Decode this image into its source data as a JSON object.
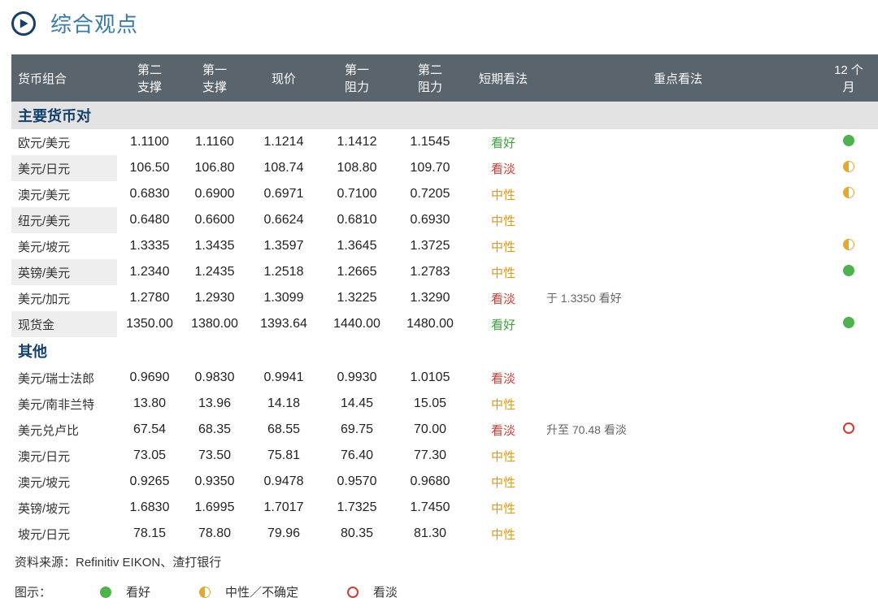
{
  "title": "综合观点",
  "header": {
    "pair": "货币组合",
    "s2": "第二\n支撑",
    "s1": "第一\n支撑",
    "price": "现价",
    "r1": "第一\n阻力",
    "r2": "第二\n阻力",
    "short": "短期看法",
    "key": "重点看法",
    "m12": "12 个\n月"
  },
  "sections": [
    {
      "label": "主要货币对"
    },
    {
      "label": "其他"
    }
  ],
  "views": {
    "bull": "看好",
    "bear": "看淡",
    "neut": "中性"
  },
  "colors": {
    "header_bg": "#5a646c",
    "section_bg": "#e3e3e3",
    "section_text": "#14406e",
    "title_text": "#3a7aa8",
    "bull": "#4db34d",
    "bear": "#d33a32",
    "neut": "#e3a92c"
  },
  "rows_major": [
    {
      "pair": "欧元/美元",
      "s2": "1.1100",
      "s1": "1.1160",
      "price": "1.1214",
      "r1": "1.1412",
      "r2": "1.1545",
      "view": "bull",
      "note": "",
      "m12": "bull"
    },
    {
      "pair": "美元/日元",
      "s2": "106.50",
      "s1": "106.80",
      "price": "108.74",
      "r1": "108.80",
      "r2": "109.70",
      "view": "bear",
      "note": "",
      "m12": "neut"
    },
    {
      "pair": "澳元/美元",
      "s2": "0.6830",
      "s1": "0.6900",
      "price": "0.6971",
      "r1": "0.7100",
      "r2": "0.7205",
      "view": "neut",
      "note": "",
      "m12": "neut"
    },
    {
      "pair": "纽元/美元",
      "s2": "0.6480",
      "s1": "0.6600",
      "price": "0.6624",
      "r1": "0.6810",
      "r2": "0.6930",
      "view": "neut",
      "note": "",
      "m12": ""
    },
    {
      "pair": "美元/坡元",
      "s2": "1.3335",
      "s1": "1.3435",
      "price": "1.3597",
      "r1": "1.3645",
      "r2": "1.3725",
      "view": "neut",
      "note": "",
      "m12": "neut"
    },
    {
      "pair": "英镑/美元",
      "s2": "1.2340",
      "s1": "1.2435",
      "price": "1.2518",
      "r1": "1.2665",
      "r2": "1.2783",
      "view": "neut",
      "note": "",
      "m12": "bull"
    },
    {
      "pair": "美元/加元",
      "s2": "1.2780",
      "s1": "1.2930",
      "price": "1.3099",
      "r1": "1.3225",
      "r2": "1.3290",
      "view": "bear",
      "note": "于 1.3350 看好",
      "m12": ""
    },
    {
      "pair": "现货金",
      "s2": "1350.00",
      "s1": "1380.00",
      "price": "1393.64",
      "r1": "1440.00",
      "r2": "1480.00",
      "view": "bull",
      "note": "",
      "m12": "bull"
    }
  ],
  "rows_other": [
    {
      "pair": "美元/瑞士法郎",
      "s2": "0.9690",
      "s1": "0.9830",
      "price": "0.9941",
      "r1": "0.9930",
      "r2": "1.0105",
      "view": "bear",
      "note": "",
      "m12": ""
    },
    {
      "pair": "美元/南非兰特",
      "s2": "13.80",
      "s1": "13.96",
      "price": "14.18",
      "r1": "14.45",
      "r2": "15.05",
      "view": "neut",
      "note": "",
      "m12": ""
    },
    {
      "pair": "美元兑卢比",
      "s2": "67.54",
      "s1": "68.35",
      "price": "68.55",
      "r1": "69.75",
      "r2": "70.00",
      "view": "bear",
      "note": "升至 70.48 看淡",
      "m12": "bear"
    },
    {
      "pair": "澳元/日元",
      "s2": "73.05",
      "s1": "73.50",
      "price": "75.81",
      "r1": "76.40",
      "r2": "77.30",
      "view": "neut",
      "note": "",
      "m12": ""
    },
    {
      "pair": "澳元/坡元",
      "s2": "0.9265",
      "s1": "0.9350",
      "price": "0.9478",
      "r1": "0.9570",
      "r2": "0.9680",
      "view": "neut",
      "note": "",
      "m12": ""
    },
    {
      "pair": "英镑/坡元",
      "s2": "1.6830",
      "s1": "1.6995",
      "price": "1.7017",
      "r1": "1.7325",
      "r2": "1.7450",
      "view": "neut",
      "note": "",
      "m12": ""
    },
    {
      "pair": "坡元/日元",
      "s2": "78.15",
      "s1": "78.80",
      "price": "79.96",
      "r1": "80.35",
      "r2": "81.30",
      "view": "neut",
      "note": "",
      "m12": ""
    }
  ],
  "source": "资料来源：Refinitiv EIKON、渣打银行",
  "legend": {
    "label": "图示：",
    "bull": "看好",
    "neut": "中性／不确定",
    "bear": "看淡"
  }
}
